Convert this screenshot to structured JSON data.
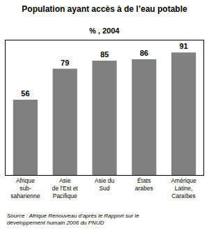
{
  "chart_data": {
    "type": "bar",
    "title": "Population ayant accès à de l’eau potable",
    "subtitle": "% , 2004",
    "source": "Source : Afrique Renouveau d’après le Rapport sur le développement humain 2006 du PNUD",
    "categories": [
      "Afrique\nsub-\nsaharienne",
      "Asie\nde l'Est et\nPacifique",
      "Asie du\nSud",
      "États\narabes",
      "Amérique\nLatine,\nCaraïbes"
    ],
    "values": [
      56,
      79,
      85,
      86,
      91
    ],
    "color": "#808080",
    "ylim": [
      0,
      100
    ],
    "grid": false,
    "data_labels": true,
    "tick_labels": "x"
  }
}
